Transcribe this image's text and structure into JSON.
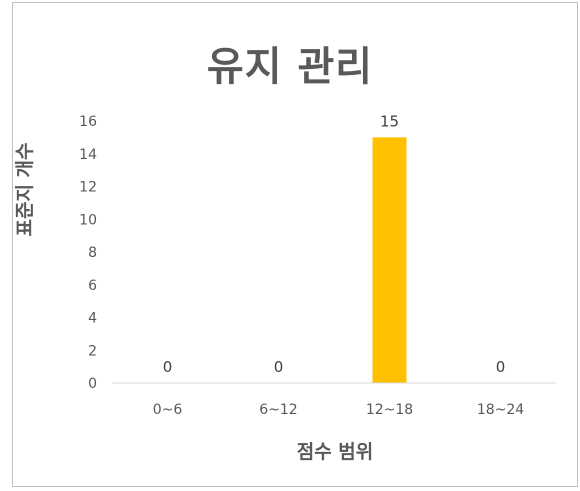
{
  "chart_data": {
    "type": "bar",
    "title": "유지 관리",
    "xlabel": "점수 범위",
    "ylabel": "표준지 개수",
    "categories": [
      "0~6",
      "6~12",
      "12~18",
      "18~24"
    ],
    "values": [
      0,
      0,
      15,
      0
    ],
    "data_labels": [
      "0",
      "0",
      "15",
      "0"
    ],
    "ylim": [
      0,
      16
    ],
    "yticks": [
      0,
      2,
      4,
      6,
      8,
      10,
      12,
      14,
      16
    ],
    "bar_color": "#ffc000",
    "grid": false,
    "legend": "none"
  }
}
